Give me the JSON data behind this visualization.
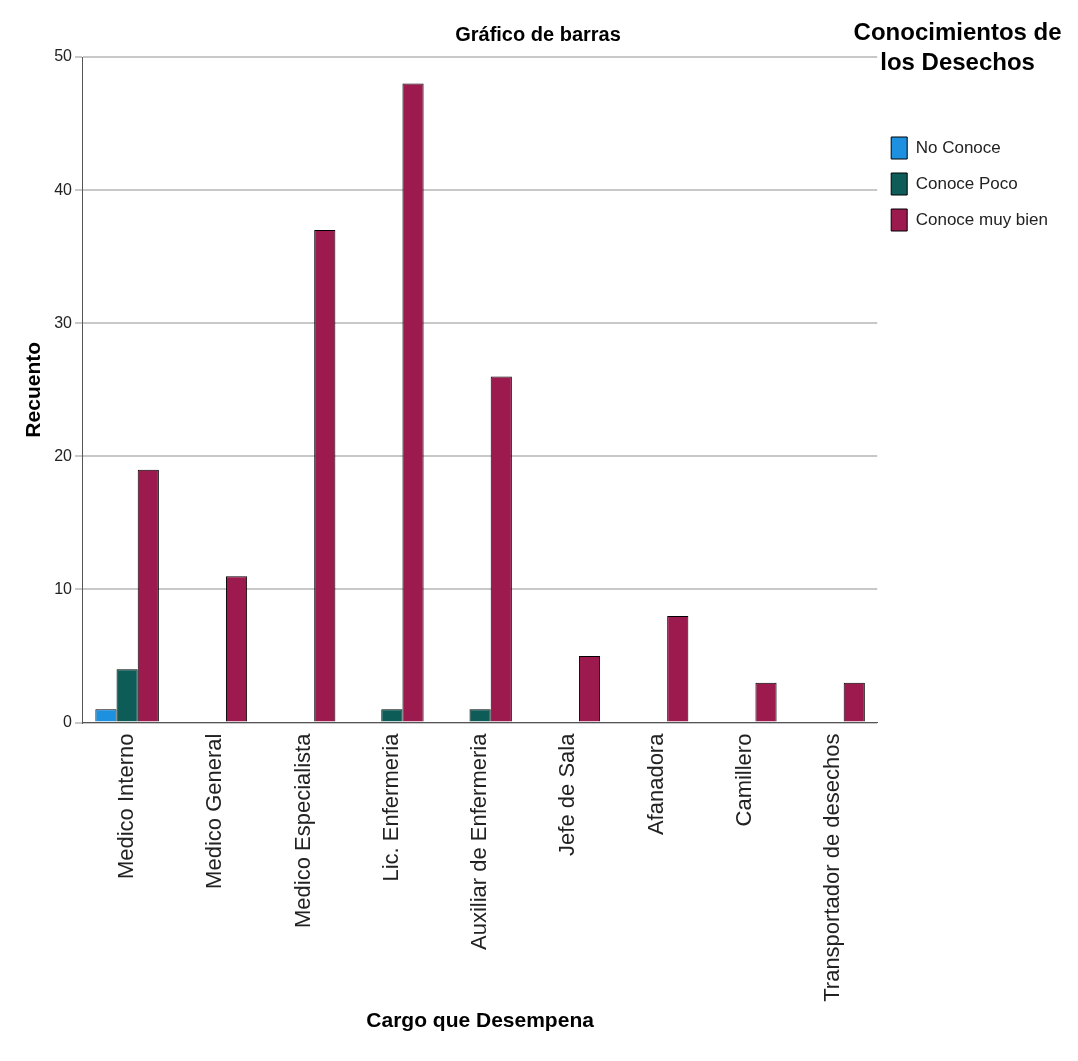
{
  "chart_data": {
    "type": "bar",
    "title": "Gráfico de barras",
    "xlabel": "Cargo que Desempena",
    "ylabel": "Recuento",
    "legend_title": "Conocimientos de los Desechos",
    "categories": [
      "Medico Interno",
      "Medico General",
      "Medico Especialista",
      "Lic. Enfermeria",
      "Auxiliar de Enfermeria",
      "Jefe de Sala",
      "Afanadora",
      "Camillero",
      "Transportador de desechos"
    ],
    "series": [
      {
        "name": "No Conoce",
        "color": "#1e90e0",
        "values": [
          1,
          null,
          null,
          null,
          null,
          null,
          null,
          null,
          null
        ]
      },
      {
        "name": "Conoce Poco",
        "color": "#0e5c58",
        "values": [
          4,
          null,
          null,
          1,
          1,
          null,
          null,
          null,
          null
        ]
      },
      {
        "name": "Conoce muy bien",
        "color": "#9c1a4e",
        "values": [
          19,
          11,
          37,
          48,
          26,
          5,
          8,
          3,
          3
        ]
      }
    ],
    "ylim": [
      0,
      50
    ],
    "yticks": [
      0,
      10,
      20,
      30,
      40,
      50
    ],
    "grid": "y",
    "legend": "top right"
  }
}
